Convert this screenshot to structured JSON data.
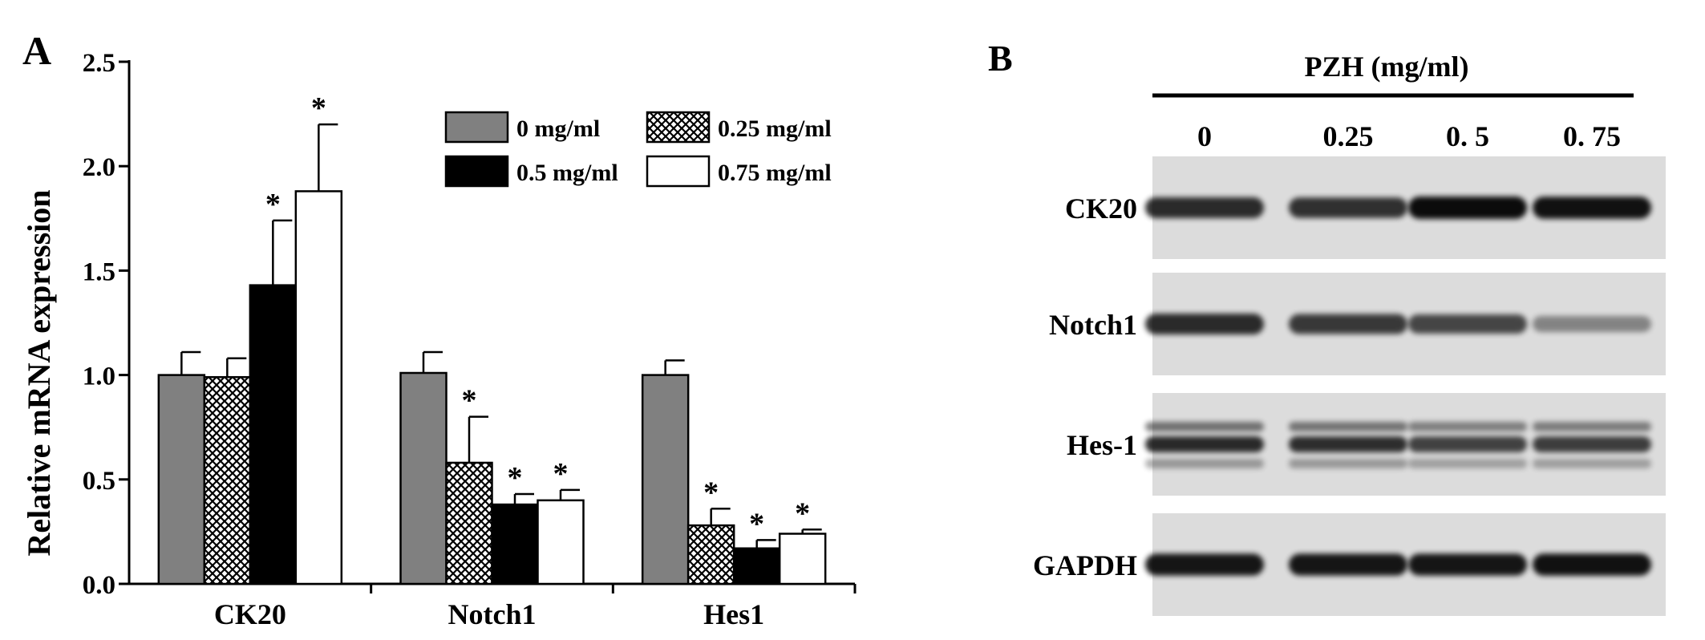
{
  "panel_a": {
    "label": "A"
  },
  "panel_b": {
    "label": "B",
    "header": "PZH (mg/ml)",
    "lanes": [
      "0",
      "0.25",
      "0. 5",
      "0. 75"
    ],
    "blots": [
      {
        "name": "CK20",
        "intensity": [
          0.85,
          0.82,
          1.0,
          0.97
        ]
      },
      {
        "name": "Notch1",
        "intensity": [
          0.85,
          0.78,
          0.72,
          0.42
        ]
      },
      {
        "name": "Hes-1",
        "intensity": [
          0.9,
          0.88,
          0.78,
          0.8
        ]
      },
      {
        "name": "GAPDH",
        "intensity": [
          0.95,
          0.95,
          0.95,
          0.97
        ]
      }
    ]
  },
  "chart_data": {
    "type": "bar",
    "title": "",
    "xlabel": "",
    "ylabel": "Relative mRNA expression",
    "ylim": [
      0.0,
      2.5
    ],
    "ytick_labels": [
      "0.0",
      "0.5",
      "1.0",
      "1.5",
      "2.0",
      "2.5"
    ],
    "categories": [
      "CK20",
      "Notch1",
      "Hes1"
    ],
    "legend_position": "top-right",
    "significance_marker": "*",
    "series": [
      {
        "name": "0 mg/ml",
        "fill": "#808080",
        "pattern": "solid",
        "values": [
          1.0,
          1.01,
          1.0
        ],
        "errors": [
          0.11,
          0.1,
          0.07
        ],
        "significant": [
          false,
          false,
          false
        ]
      },
      {
        "name": "0.25 mg/ml",
        "fill": "#ffffff",
        "pattern": "crosshatch",
        "values": [
          0.99,
          0.58,
          0.28
        ],
        "errors": [
          0.09,
          0.22,
          0.08
        ],
        "significant": [
          false,
          true,
          true
        ]
      },
      {
        "name": "0.5 mg/ml",
        "fill": "#000000",
        "pattern": "solid",
        "values": [
          1.43,
          0.38,
          0.17
        ],
        "errors": [
          0.31,
          0.05,
          0.04
        ],
        "significant": [
          true,
          true,
          true
        ]
      },
      {
        "name": "0.75 mg/ml",
        "fill": "#ffffff",
        "pattern": "solid",
        "values": [
          1.88,
          0.4,
          0.24
        ],
        "errors": [
          0.32,
          0.05,
          0.02
        ],
        "significant": [
          true,
          true,
          true
        ]
      }
    ]
  }
}
